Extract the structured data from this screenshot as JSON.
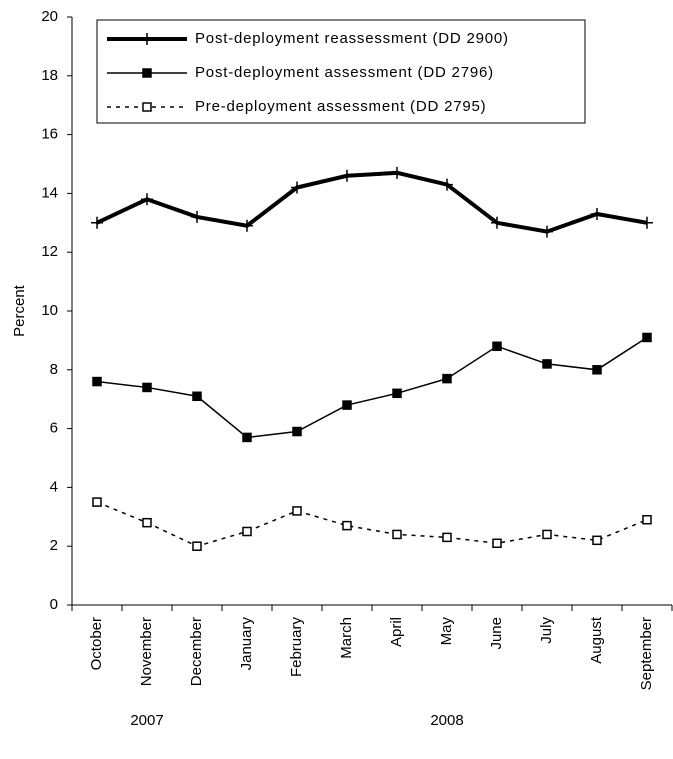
{
  "chart_data": {
    "type": "line",
    "y_label": "Percent",
    "categories": [
      "October",
      "November",
      "December",
      "January",
      "February",
      "March",
      "April",
      "May",
      "June",
      "July",
      "August",
      "September"
    ],
    "year_labels": [
      "2007",
      "2008"
    ],
    "series": [
      {
        "name": "Post-deployment reassessment (DD 2900)",
        "color": "#000000",
        "line_width": 4,
        "line_style": "solid",
        "marker": "plus",
        "values": [
          13.0,
          13.8,
          13.2,
          12.9,
          14.2,
          14.6,
          14.7,
          14.3,
          13.0,
          12.7,
          13.3,
          13.0
        ]
      },
      {
        "name": "Post-deployment assessment (DD 2796)",
        "color": "#000000",
        "line_width": 1.5,
        "line_style": "solid",
        "marker": "filled-square",
        "values": [
          7.6,
          7.4,
          7.1,
          5.7,
          5.9,
          6.8,
          7.2,
          7.7,
          8.8,
          8.2,
          8.0,
          9.1
        ]
      },
      {
        "name": "Pre-deployment assessment (DD 2795)",
        "color": "#000000",
        "line_width": 1.5,
        "line_style": "dotted",
        "marker": "open-square",
        "values": [
          3.5,
          2.8,
          2.0,
          2.5,
          3.2,
          2.7,
          2.4,
          2.3,
          2.1,
          2.4,
          2.2,
          2.9
        ]
      }
    ],
    "ylim": [
      0,
      20
    ],
    "yticks": [
      0,
      2,
      4,
      6,
      8,
      10,
      12,
      14,
      16,
      18,
      20
    ],
    "grid": false,
    "legend": "top-left"
  }
}
